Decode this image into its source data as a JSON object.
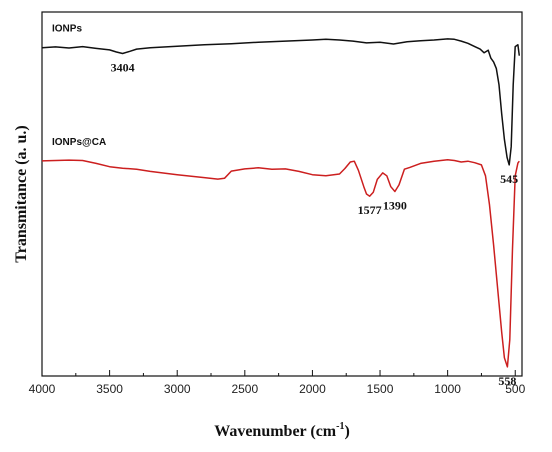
{
  "chart_data": {
    "type": "line",
    "title": "",
    "xlabel": "Wavenumber (cm",
    "xlabel_sup": "-1",
    "xlabel_close": ")",
    "ylabel": "Transmitance (a. u.)",
    "x_reversed": true,
    "xlim": [
      4000,
      450
    ],
    "ylim": [
      0,
      100
    ],
    "x_ticks": [
      4000,
      3500,
      3000,
      2500,
      2000,
      1500,
      1000,
      500
    ],
    "y_ticks_shown": false,
    "grid": false,
    "series": [
      {
        "name": "IONPs",
        "color": "#111111",
        "points": [
          [
            4000,
            90.2
          ],
          [
            3900,
            90.4
          ],
          [
            3800,
            90.1
          ],
          [
            3700,
            90.5
          ],
          [
            3600,
            90.0
          ],
          [
            3500,
            89.6
          ],
          [
            3450,
            89.0
          ],
          [
            3404,
            88.6
          ],
          [
            3350,
            89.2
          ],
          [
            3300,
            89.8
          ],
          [
            3200,
            90.2
          ],
          [
            3000,
            90.6
          ],
          [
            2800,
            91.0
          ],
          [
            2600,
            91.3
          ],
          [
            2400,
            91.7
          ],
          [
            2200,
            92.0
          ],
          [
            2000,
            92.3
          ],
          [
            1900,
            92.5
          ],
          [
            1800,
            92.3
          ],
          [
            1700,
            92.0
          ],
          [
            1600,
            91.5
          ],
          [
            1500,
            91.7
          ],
          [
            1400,
            91.2
          ],
          [
            1300,
            91.8
          ],
          [
            1200,
            92.1
          ],
          [
            1100,
            92.3
          ],
          [
            1000,
            92.6
          ],
          [
            950,
            92.5
          ],
          [
            900,
            92.0
          ],
          [
            850,
            91.4
          ],
          [
            800,
            90.5
          ],
          [
            760,
            89.8
          ],
          [
            730,
            88.8
          ],
          [
            700,
            89.5
          ],
          [
            680,
            87.3
          ],
          [
            660,
            86.3
          ],
          [
            640,
            84.5
          ],
          [
            620,
            80.0
          ],
          [
            600,
            72.0
          ],
          [
            580,
            65.0
          ],
          [
            560,
            60.0
          ],
          [
            545,
            58.0
          ],
          [
            530,
            63.0
          ],
          [
            515,
            80.0
          ],
          [
            500,
            90.5
          ],
          [
            480,
            91.0
          ],
          [
            470,
            88.0
          ]
        ]
      },
      {
        "name": "IONPs@CA",
        "color": "#cc1f1f",
        "points": [
          [
            4000,
            59.1
          ],
          [
            3800,
            59.3
          ],
          [
            3700,
            59.2
          ],
          [
            3600,
            58.4
          ],
          [
            3500,
            57.5
          ],
          [
            3404,
            57.1
          ],
          [
            3300,
            56.8
          ],
          [
            3200,
            56.2
          ],
          [
            3000,
            55.3
          ],
          [
            2800,
            54.5
          ],
          [
            2700,
            54.1
          ],
          [
            2650,
            54.3
          ],
          [
            2600,
            56.3
          ],
          [
            2500,
            56.9
          ],
          [
            2400,
            57.2
          ],
          [
            2300,
            56.8
          ],
          [
            2200,
            56.9
          ],
          [
            2100,
            56.2
          ],
          [
            2000,
            55.3
          ],
          [
            1900,
            55.0
          ],
          [
            1800,
            55.5
          ],
          [
            1760,
            57.0
          ],
          [
            1720,
            58.8
          ],
          [
            1690,
            59.0
          ],
          [
            1660,
            56.5
          ],
          [
            1620,
            52.0
          ],
          [
            1600,
            50.0
          ],
          [
            1577,
            49.4
          ],
          [
            1550,
            50.5
          ],
          [
            1520,
            54.0
          ],
          [
            1480,
            55.8
          ],
          [
            1450,
            55.0
          ],
          [
            1420,
            52.0
          ],
          [
            1390,
            50.7
          ],
          [
            1360,
            52.5
          ],
          [
            1320,
            56.8
          ],
          [
            1280,
            57.3
          ],
          [
            1200,
            58.4
          ],
          [
            1100,
            59.0
          ],
          [
            1000,
            59.4
          ],
          [
            950,
            59.2
          ],
          [
            900,
            58.8
          ],
          [
            850,
            59.0
          ],
          [
            800,
            58.6
          ],
          [
            750,
            58.0
          ],
          [
            720,
            55.0
          ],
          [
            690,
            47.0
          ],
          [
            660,
            36.0
          ],
          [
            640,
            28.0
          ],
          [
            620,
            20.0
          ],
          [
            600,
            12.0
          ],
          [
            580,
            5.0
          ],
          [
            558,
            2.5
          ],
          [
            540,
            10.0
          ],
          [
            520,
            35.0
          ],
          [
            500,
            55.0
          ],
          [
            480,
            58.5
          ],
          [
            470,
            59.0
          ]
        ]
      }
    ],
    "series_labels": [
      {
        "text": "IONPs",
        "series": 0
      },
      {
        "text": "IONPs@CA",
        "series": 1
      }
    ],
    "annotations": [
      {
        "text": "3404",
        "x": 3404,
        "series": 0
      },
      {
        "text": "545",
        "x": 545,
        "series": 0
      },
      {
        "text": "1577",
        "x": 1577,
        "series": 1
      },
      {
        "text": "1390",
        "x": 1390,
        "series": 1
      },
      {
        "text": "558",
        "x": 558,
        "series": 1
      }
    ]
  }
}
